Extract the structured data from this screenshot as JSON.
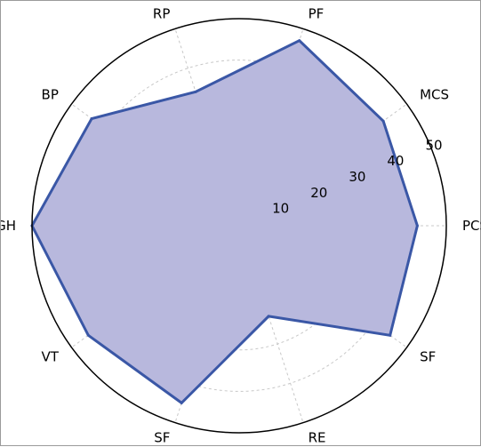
{
  "chart_data": {
    "type": "radar",
    "categories": [
      "PCS",
      "MCS",
      "PF",
      "RP",
      "BP",
      "GH",
      "VT",
      "SF",
      "RE",
      "SF"
    ],
    "values": [
      43,
      43,
      47,
      34,
      44,
      50,
      45,
      45,
      23,
      45
    ],
    "rlim": [
      0,
      50
    ],
    "rticks": [
      10,
      20,
      30,
      40,
      50
    ],
    "grid": true,
    "colors": {
      "line": "#3a57a6",
      "fill": "#b8b8dd",
      "grid": "#c8c8c8",
      "frame": "#000000"
    }
  }
}
